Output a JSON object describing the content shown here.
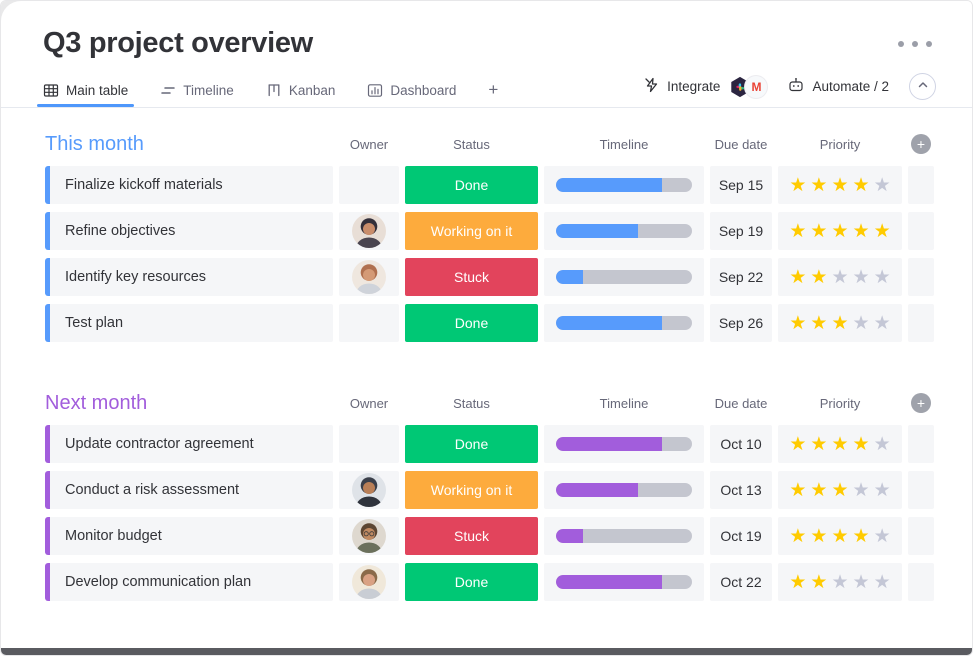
{
  "header": {
    "title": "Q3 project overview"
  },
  "tabbar": {
    "tabs": [
      {
        "label": "Main table",
        "icon": "table-grid-icon",
        "active": true
      },
      {
        "label": "Timeline",
        "icon": "timeline-icon",
        "active": false
      },
      {
        "label": "Kanban",
        "icon": "kanban-icon",
        "active": false
      },
      {
        "label": "Dashboard",
        "icon": "dashboard-icon",
        "active": false
      }
    ],
    "add_tab_label": "+",
    "integrate_label": "Integrate",
    "automate_label": "Automate / 2",
    "integration_badges": [
      "slack-icon",
      "gmail-icon"
    ]
  },
  "columns": [
    "Owner",
    "Status",
    "Timeline",
    "Due date",
    "Priority"
  ],
  "status_colors": {
    "Done": "#00c875",
    "Working on it": "#fdab3d",
    "Stuck": "#e2445c"
  },
  "star_colors": {
    "filled": "#ffcb00",
    "empty": "#c4c7d6"
  },
  "groups": [
    {
      "title": "This month",
      "color": "#579bfc",
      "timeline_color": "#579bfc",
      "rows": [
        {
          "task": "Finalize kickoff materials",
          "owner": null,
          "status": "Done",
          "progress_pct": 78,
          "due": "Sep 15",
          "stars": 4
        },
        {
          "task": "Refine objectives",
          "owner": "woman-dark-hair",
          "status": "Working on it",
          "progress_pct": 60,
          "due": "Sep 19",
          "stars": 5
        },
        {
          "task": "Identify key resources",
          "owner": "woman-auburn-hair",
          "status": "Stuck",
          "progress_pct": 20,
          "due": "Sep 22",
          "stars": 2
        },
        {
          "task": "Test plan",
          "owner": null,
          "status": "Done",
          "progress_pct": 78,
          "due": "Sep 26",
          "stars": 3
        }
      ]
    },
    {
      "title": "Next month",
      "color": "#a25ddc",
      "timeline_color": "#a25ddc",
      "rows": [
        {
          "task": "Update contractor agreement",
          "owner": null,
          "status": "Done",
          "progress_pct": 78,
          "due": "Oct 10",
          "stars": 4
        },
        {
          "task": "Conduct a risk assessment",
          "owner": "man-turban",
          "status": "Working on it",
          "progress_pct": 60,
          "due": "Oct 13",
          "stars": 3
        },
        {
          "task": "Monitor budget",
          "owner": "woman-glasses",
          "status": "Stuck",
          "progress_pct": 20,
          "due": "Oct 19",
          "stars": 4
        },
        {
          "task": "Develop communication plan",
          "owner": "man-beard",
          "status": "Done",
          "progress_pct": 78,
          "due": "Oct 22",
          "stars": 2
        }
      ]
    }
  ]
}
